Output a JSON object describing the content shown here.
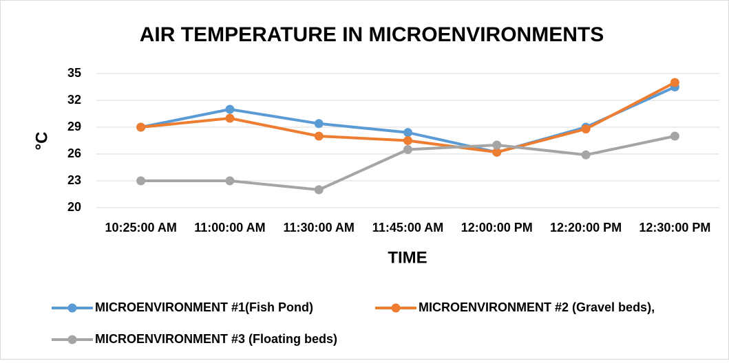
{
  "chart_data": {
    "type": "line",
    "title": "AIR TEMPERATURE IN MICROENVIRONMENTS",
    "x_label": "TIME",
    "y_label": "°C",
    "categories": [
      "10:25:00 AM",
      "11:00:00 AM",
      "11:30:00 AM",
      "11:45:00 AM",
      "12:00:00 PM",
      "12:20:00 PM",
      "12:30:00 PM"
    ],
    "series": [
      {
        "name": "MICROENVIRONMENT #1(Fish Pond)",
        "color": "#5b9bd5",
        "values": [
          29,
          31,
          29.4,
          28.4,
          26.2,
          29,
          33.5
        ]
      },
      {
        "name": "MICROENVIRONMENT #2 (Gravel beds),",
        "color": "#ed7d31",
        "values": [
          29,
          30,
          28,
          27.5,
          26.2,
          28.8,
          34
        ]
      },
      {
        "name": "MICROENVIRONMENT #3 (Floating beds)",
        "color": "#a5a5a5",
        "values": [
          23,
          23,
          22,
          26.5,
          27,
          25.9,
          28
        ]
      }
    ],
    "ylim": [
      20,
      35
    ],
    "yticks": [
      20,
      23,
      26,
      29,
      32,
      35
    ],
    "grid": true,
    "legend": "bottom"
  }
}
